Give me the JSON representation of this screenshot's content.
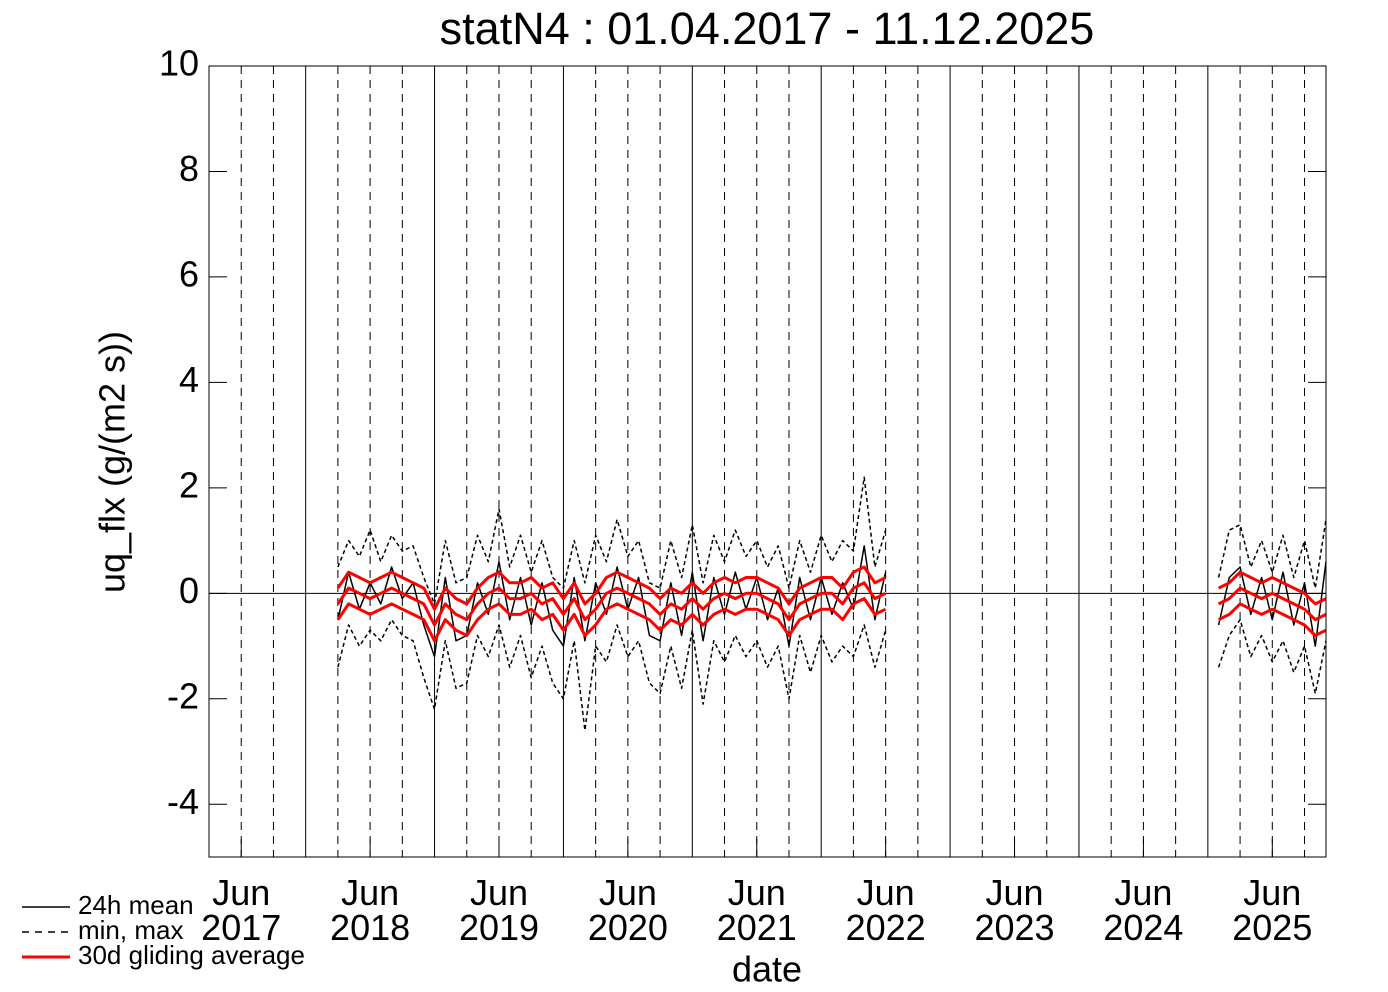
{
  "chart_data": {
    "type": "line",
    "title": "statN4 : 01.04.2017 - 11.12.2025",
    "xlabel": "date",
    "ylabel": "uq_flx (g/(m2 s))",
    "xlim": [
      "2017-04",
      "2025-12"
    ],
    "ylim": [
      -5,
      10
    ],
    "yticks": [
      -4,
      -2,
      0,
      2,
      4,
      6,
      8,
      10
    ],
    "xticks": [
      {
        "value": "2017-07",
        "label": "Jun 2017"
      },
      {
        "value": "2018-07",
        "label": "Jun 2018"
      },
      {
        "value": "2019-07",
        "label": "Jun 2019"
      },
      {
        "value": "2020-07",
        "label": "Jun 2020"
      },
      {
        "value": "2021-07",
        "label": "Jun 2021"
      },
      {
        "value": "2022-07",
        "label": "Jun 2022"
      },
      {
        "value": "2023-07",
        "label": "Jun 2023"
      },
      {
        "value": "2024-07",
        "label": "Jun 2024"
      },
      {
        "value": "2025-07",
        "label": "Jun 2025"
      }
    ],
    "xgrid_major": [
      "2018-01",
      "2019-01",
      "2020-01",
      "2021-01",
      "2022-01",
      "2023-01",
      "2024-01",
      "2025-01"
    ],
    "xgrid_minor": [
      "2017-07",
      "2017-10",
      "2018-04",
      "2018-07",
      "2018-10",
      "2019-04",
      "2019-07",
      "2019-10",
      "2020-04",
      "2020-07",
      "2020-10",
      "2021-04",
      "2021-07",
      "2021-10",
      "2022-04",
      "2022-07",
      "2022-10",
      "2023-04",
      "2023-07",
      "2023-10",
      "2024-04",
      "2024-07",
      "2024-10",
      "2025-04",
      "2025-07",
      "2025-10"
    ],
    "hline": 0,
    "legend": "bottom-left",
    "x": [
      "2018-04",
      "2018-05",
      "2018-06",
      "2018-07",
      "2018-08",
      "2018-09",
      "2018-10",
      "2018-11",
      "2018-12",
      "2019-01",
      "2019-02",
      "2019-03",
      "2019-04",
      "2019-05",
      "2019-06",
      "2019-07",
      "2019-08",
      "2019-09",
      "2019-10",
      "2019-11",
      "2019-12",
      "2020-01",
      "2020-02",
      "2020-03",
      "2020-04",
      "2020-05",
      "2020-06",
      "2020-07",
      "2020-08",
      "2020-09",
      "2020-10",
      "2020-11",
      "2020-12",
      "2021-01",
      "2021-02",
      "2021-03",
      "2021-04",
      "2021-05",
      "2021-06",
      "2021-07",
      "2021-08",
      "2021-09",
      "2021-10",
      "2021-11",
      "2021-12",
      "2022-01",
      "2022-02",
      "2022-03",
      "2022-04",
      "2022-05",
      "2022-06",
      "2022-07",
      "2023-01",
      "2025-02",
      "2025-03",
      "2025-04",
      "2025-05",
      "2025-06",
      "2025-07",
      "2025-08",
      "2025-09",
      "2025-10",
      "2025-11",
      "2025-12"
    ],
    "series": [
      {
        "name": "24h mean",
        "color": "#000000",
        "dash": "solid",
        "values": [
          -0.5,
          0.4,
          -0.3,
          0.2,
          -0.2,
          0.5,
          -0.1,
          0.2,
          -0.6,
          -1.2,
          0.3,
          -0.9,
          -0.8,
          0.2,
          -0.4,
          0.6,
          -0.5,
          0.3,
          -0.6,
          0.2,
          -0.7,
          -1.0,
          0.3,
          -0.9,
          0.2,
          -0.4,
          0.5,
          -0.3,
          0.3,
          -0.8,
          -0.9,
          0.2,
          -0.8,
          0.4,
          -0.9,
          0.3,
          -0.4,
          0.4,
          -0.3,
          0.3,
          -0.5,
          0.1,
          -1.0,
          0.3,
          -0.5,
          0.3,
          -0.4,
          0.2,
          -0.3,
          0.9,
          -0.5,
          0.4,
          null,
          -0.6,
          0.3,
          0.5,
          -0.4,
          0.3,
          -0.5,
          0.4,
          -0.6,
          0.2,
          -1.0,
          0.6
        ]
      },
      {
        "name": "min, max",
        "color": "#000000",
        "dash": "dashed",
        "low": [
          -1.4,
          -0.6,
          -1.0,
          -0.7,
          -0.9,
          -0.5,
          -0.8,
          -0.9,
          -1.6,
          -2.2,
          -0.9,
          -1.8,
          -1.7,
          -0.8,
          -1.2,
          -0.6,
          -1.4,
          -0.8,
          -1.6,
          -1.0,
          -1.7,
          -2.0,
          -0.9,
          -2.6,
          -1.0,
          -1.3,
          -0.6,
          -1.2,
          -0.9,
          -1.7,
          -1.9,
          -1.0,
          -1.8,
          -0.7,
          -2.1,
          -0.9,
          -1.3,
          -0.8,
          -1.2,
          -0.9,
          -1.4,
          -1.0,
          -2.0,
          -0.8,
          -1.5,
          -0.8,
          -1.3,
          -1.0,
          -1.2,
          -0.6,
          -1.4,
          -0.7,
          null,
          -1.4,
          -0.8,
          -0.5,
          -1.2,
          -0.8,
          -1.3,
          -0.9,
          -1.5,
          -1.0,
          -1.9,
          -0.9
        ],
        "high": [
          0.5,
          1.0,
          0.7,
          1.2,
          0.6,
          1.1,
          0.8,
          0.9,
          0.3,
          -0.2,
          1.0,
          0.2,
          0.3,
          1.1,
          0.6,
          1.6,
          0.5,
          1.1,
          0.4,
          1.0,
          0.3,
          0.1,
          1.0,
          0.2,
          1.1,
          0.6,
          1.4,
          0.7,
          1.0,
          0.2,
          0.1,
          1.0,
          0.3,
          1.3,
          0.2,
          1.1,
          0.6,
          1.2,
          0.7,
          1.0,
          0.5,
          0.9,
          0.1,
          1.0,
          0.4,
          1.1,
          0.6,
          1.0,
          0.8,
          2.2,
          0.5,
          1.2,
          null,
          0.3,
          1.2,
          1.3,
          0.5,
          1.0,
          0.4,
          1.1,
          0.3,
          1.0,
          0.1,
          1.4
        ]
      },
      {
        "name": "30d gliding average",
        "color": "#ff0000",
        "dash": "solid",
        "values": [
          -0.2,
          0.1,
          0.0,
          -0.1,
          0.0,
          0.1,
          0.0,
          -0.1,
          -0.2,
          -0.6,
          -0.2,
          -0.4,
          -0.5,
          -0.2,
          0.0,
          0.1,
          -0.1,
          -0.1,
          0.0,
          -0.2,
          -0.1,
          -0.4,
          -0.1,
          -0.5,
          -0.3,
          0.0,
          0.1,
          0.0,
          -0.1,
          -0.2,
          -0.4,
          -0.2,
          -0.3,
          -0.1,
          -0.3,
          -0.1,
          0.0,
          -0.1,
          0.0,
          0.0,
          -0.1,
          -0.2,
          -0.5,
          -0.2,
          -0.1,
          0.0,
          0.0,
          -0.2,
          0.1,
          0.2,
          -0.1,
          0.0,
          null,
          -0.2,
          -0.1,
          0.1,
          0.0,
          -0.1,
          0.0,
          -0.1,
          -0.2,
          -0.3,
          -0.5,
          -0.4
        ],
        "high": [
          0.1,
          0.4,
          0.3,
          0.2,
          0.3,
          0.4,
          0.3,
          0.2,
          0.1,
          -0.3,
          0.1,
          -0.1,
          -0.2,
          0.1,
          0.3,
          0.4,
          0.2,
          0.2,
          0.3,
          0.1,
          0.2,
          -0.1,
          0.2,
          -0.2,
          0.0,
          0.3,
          0.4,
          0.3,
          0.2,
          0.1,
          -0.1,
          0.1,
          0.0,
          0.2,
          0.0,
          0.2,
          0.3,
          0.2,
          0.3,
          0.3,
          0.2,
          0.1,
          -0.2,
          0.1,
          0.2,
          0.3,
          0.3,
          0.1,
          0.4,
          0.5,
          0.2,
          0.3,
          null,
          0.1,
          0.2,
          0.4,
          0.3,
          0.2,
          0.3,
          0.2,
          0.1,
          0.0,
          -0.2,
          -0.1
        ],
        "low": [
          -0.5,
          -0.2,
          -0.3,
          -0.4,
          -0.3,
          -0.2,
          -0.3,
          -0.4,
          -0.5,
          -0.9,
          -0.5,
          -0.7,
          -0.8,
          -0.5,
          -0.3,
          -0.2,
          -0.4,
          -0.4,
          -0.3,
          -0.5,
          -0.4,
          -0.7,
          -0.4,
          -0.8,
          -0.6,
          -0.3,
          -0.2,
          -0.3,
          -0.4,
          -0.5,
          -0.7,
          -0.5,
          -0.6,
          -0.4,
          -0.6,
          -0.4,
          -0.3,
          -0.4,
          -0.3,
          -0.3,
          -0.4,
          -0.5,
          -0.8,
          -0.5,
          -0.4,
          -0.3,
          -0.3,
          -0.5,
          -0.2,
          -0.1,
          -0.4,
          -0.3,
          null,
          -0.5,
          -0.4,
          -0.2,
          -0.3,
          -0.4,
          -0.3,
          -0.4,
          -0.5,
          -0.6,
          -0.8,
          -0.7
        ]
      }
    ]
  }
}
